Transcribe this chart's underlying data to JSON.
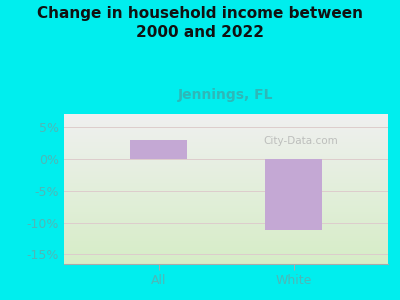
{
  "title": "Change in household income between\n2000 and 2022",
  "subtitle": "Jennings, FL",
  "categories": [
    "All",
    "White"
  ],
  "values": [
    3.0,
    -11.2
  ],
  "bar_color": "#c4a8d4",
  "background_color": "#00EEEE",
  "plot_bg_top": "#f0f0f0",
  "plot_bg_bottom": "#d8ecc8",
  "ylim": [
    -16.5,
    7
  ],
  "yticks": [
    5,
    0,
    -5,
    -10,
    -15
  ],
  "ytick_labels": [
    "5%",
    "0%",
    "-5%",
    "-10%",
    "-15%"
  ],
  "title_fontsize": 11,
  "subtitle_fontsize": 10,
  "subtitle_color": "#2db8b8",
  "title_color": "#111111",
  "tick_color": "#4db8b8",
  "bar_width": 0.42,
  "watermark": "City-Data.com"
}
